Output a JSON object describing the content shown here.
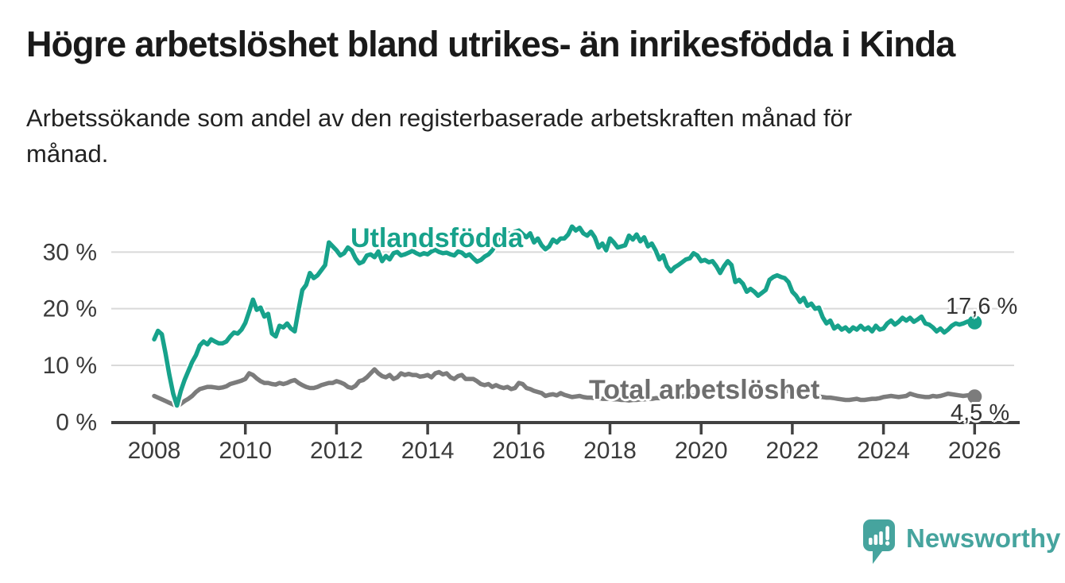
{
  "header": {
    "title": "Högre arbetslöshet bland utrikes- än inrikesfödda i Kinda",
    "subtitle": "Arbetssökande som andel av den registerbaserade arbetskraften månad för månad."
  },
  "branding": {
    "name": "Newsworthy",
    "color": "#46a49e",
    "logo_icon": "speech-bubble-with-bar-chart-and-exclamation"
  },
  "chart_data": {
    "type": "line",
    "title": "Högre arbetslöshet bland utrikes- än inrikesfödda i Kinda",
    "subtitle": "Arbetssökande som andel av den registerbaserade arbetskraften månad för månad.",
    "xlabel": "",
    "ylabel": "",
    "x_unit": "month",
    "x_start": "2008-01",
    "x_end": "2026-01",
    "x_ticks": [
      2008,
      2010,
      2012,
      2014,
      2016,
      2018,
      2020,
      2022,
      2024,
      2026
    ],
    "y_ticks": [
      {
        "value": 0,
        "label": "0 %"
      },
      {
        "value": 10,
        "label": "10 %"
      },
      {
        "value": 20,
        "label": "20 %"
      },
      {
        "value": 30,
        "label": "30 %"
      }
    ],
    "ylim": [
      0,
      35.5
    ],
    "grid": "horizontal",
    "legend_position": "inline-labels",
    "axis_color": "#414141",
    "grid_color": "#d9d9d9",
    "series": [
      {
        "name": "Utlandsfödda",
        "color": "#17a28b",
        "end_label": "17,6 %",
        "end_value": 17.6,
        "values": [
          14.6,
          16.1,
          15.5,
          12.1,
          8.3,
          5.0,
          2.9,
          5.5,
          7.4,
          9.0,
          10.6,
          11.8,
          13.5,
          14.2,
          13.7,
          14.6,
          14.2,
          13.9,
          13.9,
          14.2,
          15.1,
          15.8,
          15.6,
          16.3,
          17.5,
          19.5,
          21.6,
          19.8,
          20.2,
          18.6,
          19.1,
          15.6,
          15.1,
          17.0,
          16.7,
          17.4,
          16.5,
          16.0,
          19.8,
          23.3,
          24.2,
          26.3,
          25.4,
          25.9,
          26.8,
          27.7,
          31.7,
          31.0,
          30.3,
          29.4,
          29.8,
          30.8,
          30.3,
          28.9,
          28.0,
          28.3,
          29.4,
          29.6,
          29.1,
          30.1,
          28.4,
          29.3,
          28.7,
          29.8,
          30.0,
          29.4,
          29.6,
          29.9,
          30.2,
          29.8,
          29.5,
          29.8,
          29.6,
          30.1,
          30.4,
          30.0,
          29.8,
          29.9,
          29.6,
          29.4,
          30.1,
          29.9,
          29.3,
          29.6,
          28.9,
          28.3,
          28.6,
          29.2,
          29.6,
          30.3,
          31.5,
          33.0,
          34.3,
          33.4,
          33.1,
          33.6,
          33.8,
          33.2,
          32.6,
          33.3,
          31.7,
          32.4,
          31.2,
          30.5,
          31.0,
          32.2,
          31.7,
          32.4,
          32.4,
          33.1,
          34.5,
          33.8,
          34.3,
          33.3,
          32.9,
          33.6,
          32.6,
          30.8,
          31.5,
          30.3,
          32.4,
          31.7,
          30.8,
          31.0,
          31.2,
          32.9,
          32.2,
          33.1,
          31.9,
          32.6,
          31.0,
          31.5,
          30.3,
          28.7,
          29.4,
          27.5,
          26.6,
          27.3,
          27.7,
          28.2,
          28.7,
          28.9,
          29.8,
          29.4,
          28.4,
          28.6,
          28.2,
          28.4,
          27.5,
          26.3,
          27.5,
          28.4,
          27.7,
          24.7,
          25.1,
          24.4,
          23.0,
          23.5,
          23.0,
          22.3,
          22.8,
          23.3,
          25.1,
          25.6,
          25.9,
          25.6,
          25.4,
          24.7,
          23.0,
          22.3,
          21.2,
          21.9,
          20.5,
          20.9,
          20.0,
          20.2,
          18.5,
          17.4,
          17.9,
          16.5,
          17.0,
          16.3,
          16.7,
          16.0,
          16.7,
          16.3,
          17.0,
          16.3,
          16.7,
          16.0,
          17.0,
          16.3,
          16.5,
          17.4,
          17.9,
          17.2,
          17.7,
          18.4,
          17.9,
          18.4,
          17.7,
          18.1,
          18.6,
          17.4,
          17.2,
          16.7,
          16.0,
          16.5,
          15.8,
          16.3,
          17.0,
          17.4,
          17.2,
          17.4,
          17.7,
          17.9,
          17.6
        ]
      },
      {
        "name": "Total arbetslöshet",
        "color": "#7c7c7c",
        "end_label": "4,5 %",
        "end_value": 4.5,
        "values": [
          4.6,
          4.3,
          4.0,
          3.7,
          3.4,
          3.1,
          2.7,
          3.2,
          3.7,
          4.1,
          4.6,
          5.3,
          5.8,
          6.0,
          6.2,
          6.2,
          6.1,
          6.0,
          6.1,
          6.3,
          6.7,
          6.9,
          7.1,
          7.3,
          7.6,
          8.6,
          8.3,
          7.7,
          7.2,
          6.9,
          6.9,
          6.7,
          6.6,
          6.9,
          6.7,
          6.9,
          7.2,
          7.4,
          6.9,
          6.5,
          6.2,
          6.0,
          6.0,
          6.2,
          6.5,
          6.7,
          6.9,
          6.9,
          7.2,
          7.0,
          6.7,
          6.2,
          6.0,
          6.4,
          7.2,
          7.4,
          7.9,
          8.6,
          9.3,
          8.6,
          8.1,
          7.9,
          8.3,
          7.6,
          7.9,
          8.6,
          8.3,
          8.5,
          8.3,
          8.3,
          8.0,
          8.1,
          8.3,
          7.9,
          8.6,
          8.8,
          8.4,
          8.6,
          7.9,
          7.6,
          8.1,
          8.3,
          7.6,
          7.6,
          7.6,
          7.2,
          6.7,
          6.5,
          6.7,
          6.2,
          6.5,
          6.2,
          6.0,
          6.2,
          5.8,
          6.0,
          6.9,
          6.7,
          6.0,
          5.8,
          5.5,
          5.3,
          5.1,
          4.6,
          4.8,
          4.9,
          4.7,
          5.1,
          4.8,
          4.6,
          4.4,
          4.5,
          4.6,
          4.4,
          4.3,
          4.3,
          4.2,
          4.2,
          4.1,
          4.1,
          4.1,
          4.0,
          4.0,
          3.9,
          3.9,
          3.8,
          3.9,
          3.9,
          4.0,
          4.0,
          4.1,
          4.1,
          4.2,
          4.2,
          4.3,
          4.3,
          4.4,
          4.4,
          4.5,
          4.5,
          4.6,
          4.6,
          4.7,
          4.8,
          4.9,
          5.0,
          5.3,
          5.6,
          5.8,
          5.9,
          6.0,
          5.9,
          5.8,
          5.8,
          5.7,
          5.7,
          5.8,
          5.8,
          5.7,
          5.6,
          5.5,
          5.4,
          5.3,
          5.2,
          5.2,
          5.3,
          5.4,
          5.5,
          5.4,
          5.3,
          5.2,
          5.0,
          4.8,
          4.7,
          4.6,
          4.5,
          4.4,
          4.3,
          4.3,
          4.2,
          4.1,
          4.0,
          3.9,
          3.9,
          4.0,
          4.1,
          3.9,
          3.9,
          4.0,
          4.1,
          4.1,
          4.2,
          4.4,
          4.5,
          4.6,
          4.5,
          4.4,
          4.5,
          4.6,
          5.0,
          4.8,
          4.6,
          4.5,
          4.4,
          4.4,
          4.6,
          4.5,
          4.6,
          4.8,
          5.0,
          4.9,
          4.8,
          4.7,
          4.6,
          4.7,
          4.8,
          4.5
        ]
      }
    ]
  }
}
